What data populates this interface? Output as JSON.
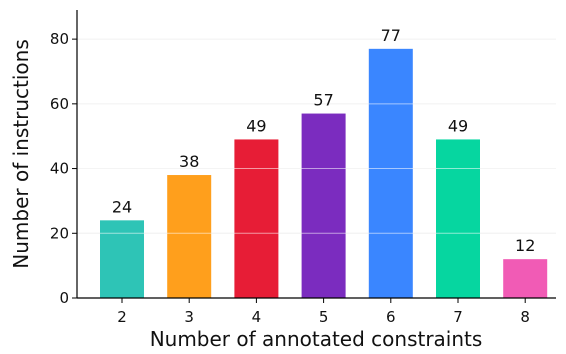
{
  "chart_data": {
    "type": "bar",
    "categories": [
      "2",
      "3",
      "4",
      "5",
      "6",
      "7",
      "8"
    ],
    "values": [
      24,
      38,
      49,
      57,
      77,
      49,
      12
    ],
    "colors": [
      "#2ec4b6",
      "#ff9f1c",
      "#e71d36",
      "#7b2cbf",
      "#3a86ff",
      "#06d6a0",
      "#f15bb5"
    ],
    "data_labels": [
      "24",
      "38",
      "49",
      "57",
      "77",
      "49",
      "12"
    ],
    "xlabel": "Number of annotated constraints",
    "ylabel": "Number of instructions",
    "ylim": [
      0,
      89
    ],
    "yticks": [
      0,
      20,
      40,
      60,
      80
    ],
    "ytick_labels": [
      "0",
      "20",
      "40",
      "60",
      "80"
    ],
    "grid": "horizontal",
    "grid_color": "#e6e6e6"
  }
}
